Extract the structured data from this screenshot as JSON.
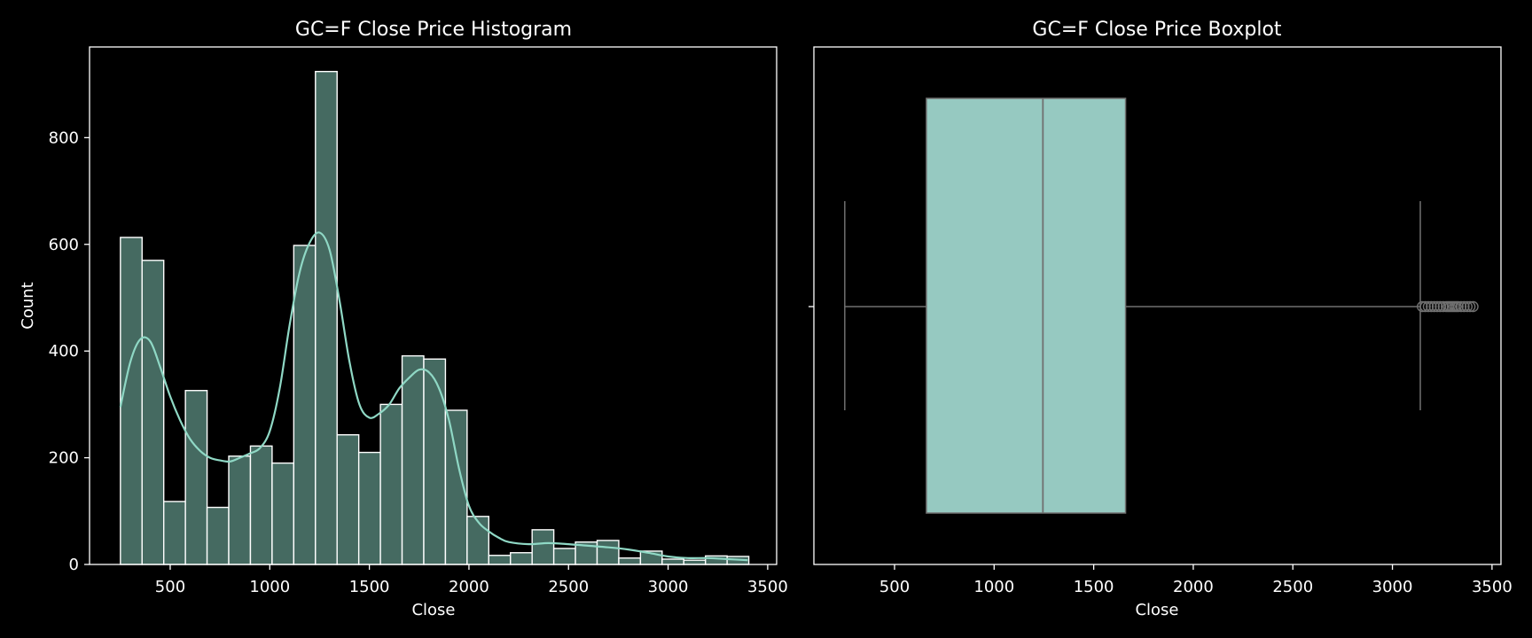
{
  "chart_data": [
    {
      "type": "histogram",
      "title": "GC=F Close Price Histogram",
      "xlabel": "Close",
      "ylabel": "Count",
      "xlim": [
        95,
        3545
      ],
      "ylim": [
        0,
        970
      ],
      "xticks": [
        500,
        1000,
        1500,
        2000,
        2500,
        3000,
        3500
      ],
      "yticks": [
        0,
        200,
        400,
        600,
        800
      ],
      "bin_start": 250,
      "bin_width": 108.8,
      "counts": [
        613,
        570,
        118,
        326,
        107,
        203,
        222,
        190,
        598,
        924,
        243,
        210,
        300,
        391,
        385,
        289,
        90,
        17,
        22,
        65,
        30,
        42,
        45,
        12,
        25,
        10,
        8,
        16,
        15
      ],
      "kde": {
        "x": [
          250,
          300,
          350,
          400,
          450,
          500,
          550,
          600,
          650,
          700,
          750,
          800,
          850,
          900,
          950,
          1000,
          1050,
          1100,
          1150,
          1200,
          1250,
          1300,
          1350,
          1400,
          1450,
          1500,
          1550,
          1600,
          1650,
          1700,
          1750,
          1800,
          1850,
          1900,
          1950,
          2000,
          2050,
          2100,
          2150,
          2200,
          2300,
          2400,
          2500,
          2600,
          2700,
          2800,
          2900,
          3000,
          3100,
          3200,
          3300,
          3400
        ],
        "y": [
          295,
          380,
          422,
          418,
          370,
          315,
          270,
          235,
          213,
          200,
          195,
          193,
          200,
          208,
          218,
          250,
          330,
          450,
          548,
          603,
          622,
          590,
          495,
          380,
          300,
          275,
          283,
          300,
          330,
          350,
          365,
          360,
          330,
          270,
          180,
          110,
          78,
          62,
          50,
          42,
          38,
          40,
          38,
          35,
          32,
          28,
          22,
          15,
          12,
          12,
          10,
          8
        ],
        "color": "#8fd8c5"
      },
      "bar_fill": "#456a61",
      "bar_edge": "#ffffff"
    },
    {
      "type": "boxplot",
      "title": "GC=F Close Price Boxplot",
      "xlabel": "Close",
      "xlim": [
        95,
        3545
      ],
      "xticks": [
        500,
        1000,
        1500,
        2000,
        2500,
        3000,
        3500
      ],
      "whisker_low": 250,
      "q1": 660,
      "median": 1245,
      "q3": 1660,
      "whisker_high": 3140,
      "outliers": [
        3150,
        3165,
        3180,
        3195,
        3210,
        3225,
        3240,
        3255,
        3270,
        3280,
        3290,
        3300,
        3310,
        3320,
        3330,
        3345,
        3360,
        3375,
        3390,
        3405
      ],
      "box_fill": "#96c9c1",
      "line_color": "#707070"
    }
  ]
}
